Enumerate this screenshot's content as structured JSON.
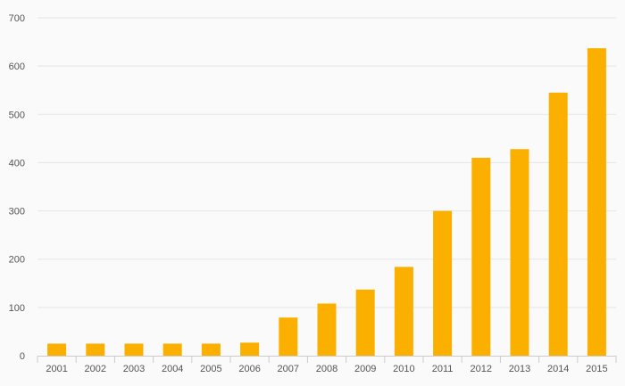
{
  "chart_data": {
    "type": "bar",
    "title": "",
    "xlabel": "",
    "ylabel": "",
    "categories": [
      "2001",
      "2002",
      "2003",
      "2004",
      "2005",
      "2006",
      "2007",
      "2008",
      "2009",
      "2010",
      "2011",
      "2012",
      "2013",
      "2014",
      "2015"
    ],
    "values": [
      25,
      25,
      25,
      25,
      25,
      27,
      79,
      108,
      137,
      184,
      300,
      410,
      428,
      545,
      637
    ],
    "ylim": [
      0,
      700
    ],
    "yticks": [
      "0",
      "100",
      "200",
      "300",
      "400",
      "500",
      "600",
      "700"
    ],
    "grid": true,
    "legend": "none",
    "colors": {
      "bar": "#fbb000",
      "grid": "#e6e6e6",
      "axis": "#cccccc",
      "text": "#555555",
      "background": "#fafafa"
    }
  }
}
